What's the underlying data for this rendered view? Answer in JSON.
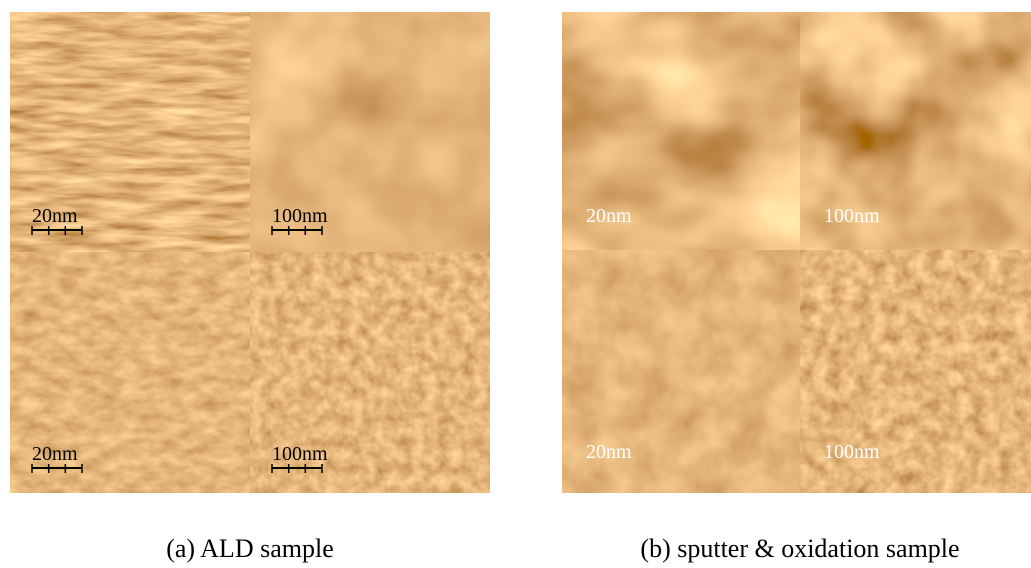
{
  "panels": [
    {
      "caption": "(a) ALD sample",
      "tiles": [
        {
          "label": "20nm"
        },
        {
          "label": "100nm"
        },
        {
          "label": "20nm"
        },
        {
          "label": "100nm"
        }
      ]
    },
    {
      "caption": "(b) sputter & oxidation sample",
      "tiles": [
        {
          "label": "20nm"
        },
        {
          "label": "100nm"
        },
        {
          "label": "20nm"
        },
        {
          "label": "100nm"
        }
      ]
    }
  ]
}
